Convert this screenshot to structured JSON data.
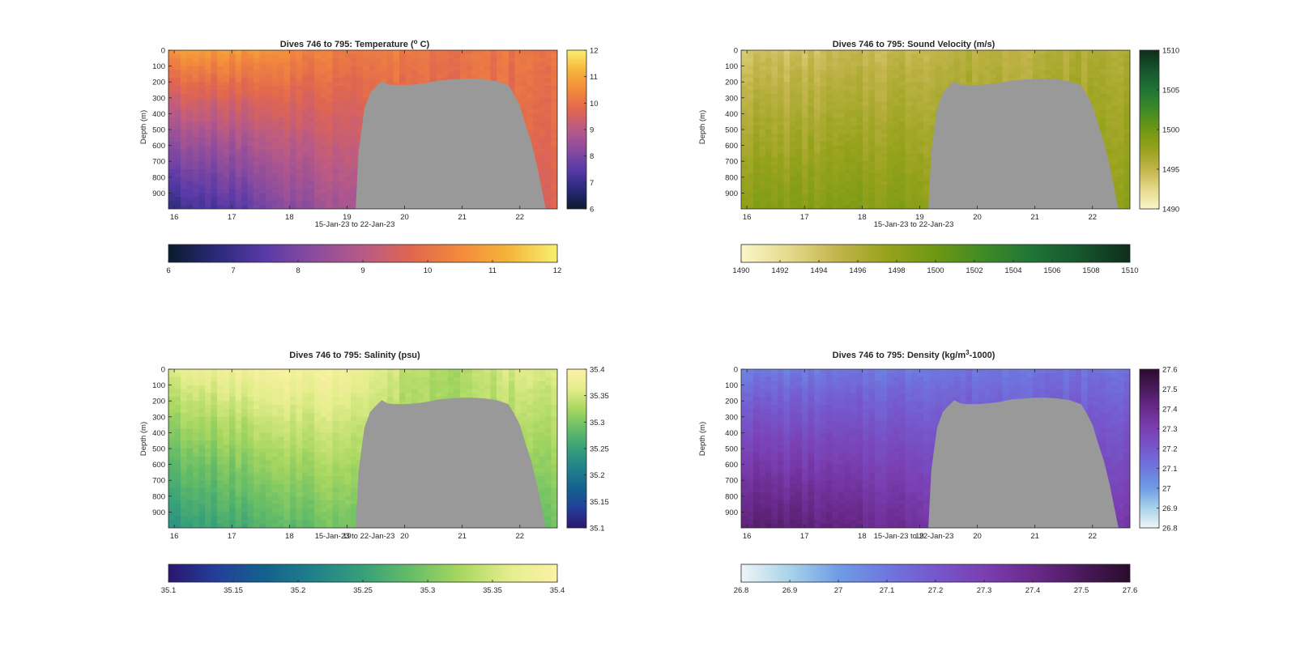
{
  "chart_data": [
    {
      "type": "heatmap",
      "variable": "temperature",
      "title_main": "Dives 746 to 795: Temperature (",
      "title_sup": "o",
      "title_end": " C)",
      "xlabel": "15-Jan-23 to 22-Jan-23",
      "ylabel": "Depth (m)",
      "x_ticks": [
        "16",
        "17",
        "18",
        "19",
        "20",
        "21",
        "22"
      ],
      "y_ticks": [
        "0",
        "100",
        "200",
        "300",
        "400",
        "500",
        "600",
        "700",
        "800",
        "900"
      ],
      "xlim": [
        15.9,
        22.65
      ],
      "ylim": [
        0,
        1000
      ],
      "clim": [
        6,
        12
      ],
      "colormap": [
        "#0a1b2e",
        "#2b2a7a",
        "#5a3aa8",
        "#8a4c9e",
        "#b85a88",
        "#e0664f",
        "#f38a3c",
        "#f5b53a",
        "#f8ef70"
      ],
      "colorbar_ticks": [
        "6",
        "7",
        "8",
        "9",
        "10",
        "11",
        "12"
      ],
      "hcolorbar_ticks": [
        "6",
        "7",
        "8",
        "9",
        "10",
        "11",
        "12"
      ],
      "no_data_region": "seafloor",
      "profile_surface": [
        10.9,
        10.8,
        10.5,
        10.3,
        10.2,
        10.1,
        10.1
      ],
      "profile_bottom": [
        7.0,
        7.4,
        8.2,
        8.8,
        9.3,
        9.6,
        9.6
      ]
    },
    {
      "type": "heatmap",
      "variable": "sound_velocity",
      "title_main": "Dives 746 to 795: Sound Velocity (m/s)",
      "title_sup": "",
      "title_end": "",
      "xlabel": "15-Jan-23 to 22-Jan-23",
      "ylabel": "Depth (m)",
      "x_ticks": [
        "16",
        "17",
        "18",
        "19",
        "20",
        "21",
        "22"
      ],
      "y_ticks": [
        "0",
        "100",
        "200",
        "300",
        "400",
        "500",
        "600",
        "700",
        "800",
        "900"
      ],
      "xlim": [
        15.9,
        22.65
      ],
      "ylim": [
        0,
        1000
      ],
      "clim": [
        1490,
        1510
      ],
      "colormap": [
        "#fbf6c8",
        "#e4d98c",
        "#c2b44a",
        "#97a21c",
        "#6e9812",
        "#3f8a26",
        "#1f7436",
        "#16552d",
        "#0f2d1b"
      ],
      "colorbar_ticks": [
        "1490",
        "1495",
        "1500",
        "1505",
        "1510"
      ],
      "hcolorbar_ticks": [
        "1490",
        "1492",
        "1494",
        "1496",
        "1498",
        "1500",
        "1502",
        "1504",
        "1506",
        "1508",
        "1510"
      ],
      "no_data_region": "seafloor",
      "profile_surface": [
        1494.0,
        1494.0,
        1494.5,
        1495.0,
        1495.5,
        1495.5,
        1496.0
      ],
      "profile_bottom": [
        1498.5,
        1498.5,
        1498.5,
        1498.5,
        1498.0,
        1498.0,
        1498.0
      ]
    },
    {
      "type": "heatmap",
      "variable": "salinity",
      "title_main": "Dives 746 to 795: Salinity (psu)",
      "title_sup": "",
      "title_end": "",
      "xlabel": "15-Jan-23 to 22-Jan-23",
      "ylabel": "Depth (m)",
      "x_ticks": [
        "16",
        "17",
        "18",
        "19",
        "20",
        "21",
        "22"
      ],
      "y_ticks": [
        "0",
        "100",
        "200",
        "300",
        "400",
        "500",
        "600",
        "700",
        "800",
        "900"
      ],
      "xlim": [
        15.9,
        22.65
      ],
      "ylim": [
        0,
        1000
      ],
      "clim": [
        35.1,
        35.4
      ],
      "colormap": [
        "#2a1670",
        "#233f9a",
        "#13628e",
        "#21818a",
        "#36a07a",
        "#66bd66",
        "#a8d760",
        "#e4ed8c",
        "#fcf2a6"
      ],
      "colorbar_ticks": [
        "35.1",
        "35.15",
        "35.2",
        "35.25",
        "35.3",
        "35.35",
        "35.4"
      ],
      "hcolorbar_ticks": [
        "35.1",
        "35.15",
        "35.2",
        "35.25",
        "35.3",
        "35.35",
        "35.4"
      ],
      "no_data_region": "seafloor",
      "profile_surface": [
        35.37,
        35.38,
        35.39,
        35.39,
        35.34,
        35.33,
        35.36
      ],
      "profile_bottom": [
        35.24,
        35.26,
        35.28,
        35.3,
        35.31,
        35.32,
        35.29
      ]
    },
    {
      "type": "heatmap",
      "variable": "density",
      "title_main": "Dives 746 to 795: Density (kg/m",
      "title_sup": "3",
      "title_end": "-1000)",
      "xlabel": "15-Jan-23 to 22-Jan-23",
      "ylabel": "Depth (m)",
      "x_ticks": [
        "16",
        "17",
        "18",
        "19",
        "20",
        "21",
        "22"
      ],
      "y_ticks": [
        "0",
        "100",
        "200",
        "300",
        "400",
        "500",
        "600",
        "700",
        "800",
        "900"
      ],
      "xlim": [
        15.9,
        22.65
      ],
      "ylim": [
        0,
        1000
      ],
      "clim": [
        26.8,
        27.6
      ],
      "colormap": [
        "#eef6f7",
        "#a9d2e8",
        "#6f9ce6",
        "#6f77de",
        "#7657cc",
        "#7a3fb2",
        "#6a2a8c",
        "#4a1a5c",
        "#2a0b2c"
      ],
      "colorbar_ticks": [
        "26.8",
        "26.9",
        "27",
        "27.1",
        "27.2",
        "27.3",
        "27.4",
        "27.5",
        "27.6"
      ],
      "hcolorbar_ticks": [
        "26.8",
        "26.9",
        "27",
        "27.1",
        "27.2",
        "27.3",
        "27.4",
        "27.5",
        "27.6"
      ],
      "no_data_region": "seafloor",
      "profile_surface": [
        27.08,
        27.08,
        27.09,
        27.1,
        27.1,
        27.11,
        27.11
      ],
      "profile_bottom": [
        27.46,
        27.44,
        27.4,
        27.37,
        27.34,
        27.33,
        27.33
      ]
    }
  ],
  "seafloor_profile": {
    "day": [
      19.15,
      19.2,
      19.3,
      19.4,
      19.5,
      19.6,
      19.7,
      19.8,
      19.9,
      20.0,
      20.2,
      20.4,
      20.6,
      20.8,
      21.0,
      21.2,
      21.4,
      21.6,
      21.8,
      21.9,
      22.0,
      22.1,
      22.2,
      22.3,
      22.45
    ],
    "depth": [
      1000,
      640,
      370,
      270,
      230,
      195,
      215,
      220,
      220,
      220,
      215,
      205,
      190,
      185,
      180,
      180,
      185,
      195,
      220,
      280,
      350,
      470,
      580,
      730,
      1000
    ],
    "color": "#999999"
  }
}
